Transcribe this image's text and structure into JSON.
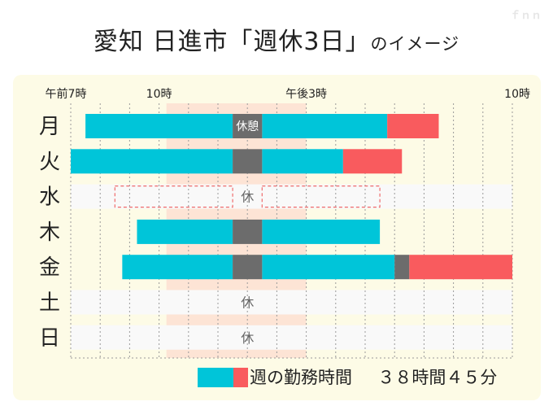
{
  "watermark": "ｆｎｎ",
  "title": {
    "main": "愛知 日進市「週休3日」",
    "suffix": "のイメージ"
  },
  "colors": {
    "panel": "#fdfbe6",
    "work": "#00c5d9",
    "overtime": "#f95b5e",
    "break": "#6c6c6c",
    "core_band": "#fde4d5",
    "holiday_row": "#f9f9f9",
    "holiday_dash": "#ef6b6b"
  },
  "chart_data": {
    "type": "gantt",
    "x_unit": "hour of day",
    "x_range": [
      7,
      22
    ],
    "time_labels": [
      {
        "time": 7,
        "label": "午前7時"
      },
      {
        "time": 10,
        "label": "10時"
      },
      {
        "time": 15,
        "label": "午後3時"
      },
      {
        "time": 22,
        "label": "10時"
      }
    ],
    "core_time": [
      10.25,
      15
    ],
    "break_label": "休憩",
    "holiday_label": "休",
    "days": [
      {
        "day": "月",
        "type": "work",
        "work": [
          [
            7.5,
            12.5
          ],
          [
            13.5,
            17.75
          ]
        ],
        "break": [
          12.5,
          13.5
        ],
        "overtime": [
          17.75,
          19.5
        ]
      },
      {
        "day": "火",
        "type": "work",
        "work": [
          [
            7,
            12.5
          ],
          [
            13.5,
            16.25
          ]
        ],
        "break": [
          12.5,
          13.5
        ],
        "overtime": [
          16.25,
          18.25
        ]
      },
      {
        "day": "水",
        "type": "holiday",
        "planned": [
          [
            8.5,
            12.5
          ],
          [
            13.5,
            17.5
          ]
        ]
      },
      {
        "day": "木",
        "type": "work",
        "work": [
          [
            9.25,
            12.5
          ],
          [
            13.5,
            17.5
          ]
        ],
        "break": [
          12.5,
          13.5
        ]
      },
      {
        "day": "金",
        "type": "work",
        "work": [
          [
            8.75,
            12.5
          ],
          [
            13.5,
            18
          ]
        ],
        "break": [
          [
            12.5,
            13.5
          ],
          [
            18,
            18.5
          ]
        ],
        "overtime": [
          18.5,
          22
        ]
      },
      {
        "day": "土",
        "type": "holiday"
      },
      {
        "day": "日",
        "type": "holiday"
      }
    ],
    "legend": {
      "label": "週の勤務時間",
      "total": "３８時間４５分"
    }
  }
}
